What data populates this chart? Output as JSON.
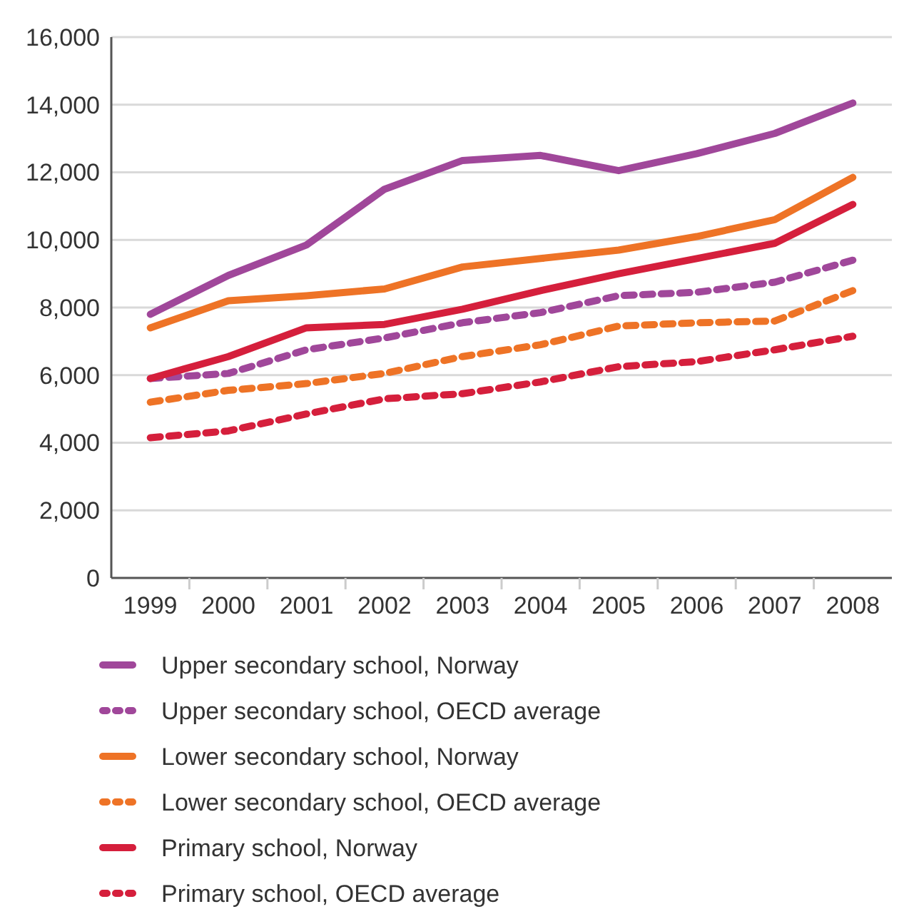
{
  "chart_data": {
    "type": "line",
    "categories": [
      "1999",
      "2000",
      "2001",
      "2002",
      "2003",
      "2004",
      "2005",
      "2006",
      "2007",
      "2008"
    ],
    "ylim": [
      0,
      16000
    ],
    "yticks": [
      {
        "value": 0,
        "label": "0"
      },
      {
        "value": 2000,
        "label": "2,000"
      },
      {
        "value": 4000,
        "label": "4,000"
      },
      {
        "value": 6000,
        "label": "6,000"
      },
      {
        "value": 8000,
        "label": "8,000"
      },
      {
        "value": 10000,
        "label": "10,000"
      },
      {
        "value": 12000,
        "label": "12,000"
      },
      {
        "value": 14000,
        "label": "14,000"
      },
      {
        "value": 16000,
        "label": "16,000"
      }
    ],
    "grid": "y",
    "legend": "bottom",
    "marker": "none",
    "series": [
      {
        "name": "Upper secondary school, Norway",
        "color": "#a0479a",
        "line_style": "solid",
        "values": [
          7800,
          8950,
          9850,
          11500,
          12350,
          12500,
          12050,
          12550,
          13150,
          14050
        ]
      },
      {
        "name": "Upper secondary school, OECD average",
        "color": "#a0479a",
        "line_style": "dashed",
        "values": [
          5900,
          6050,
          6750,
          7100,
          7550,
          7850,
          8350,
          8450,
          8750,
          9400
        ]
      },
      {
        "name": "Lower secondary school, Norway",
        "color": "#ee7326",
        "line_style": "solid",
        "values": [
          7400,
          8200,
          8350,
          8550,
          9200,
          9450,
          9700,
          10100,
          10600,
          11850
        ]
      },
      {
        "name": "Lower secondary school, OECD average",
        "color": "#ee7326",
        "line_style": "dashed",
        "values": [
          5200,
          5550,
          5750,
          6050,
          6550,
          6900,
          7450,
          7550,
          7600,
          8500
        ]
      },
      {
        "name": "Primary school, Norway",
        "color": "#d51f3c",
        "line_style": "solid",
        "values": [
          5900,
          6550,
          7400,
          7500,
          7950,
          8500,
          9000,
          9450,
          9900,
          11050
        ]
      },
      {
        "name": "Primary school, OECD average",
        "color": "#d51f3c",
        "line_style": "dashed",
        "values": [
          4150,
          4350,
          4850,
          5300,
          5450,
          5800,
          6250,
          6400,
          6750,
          7150
        ]
      }
    ]
  }
}
